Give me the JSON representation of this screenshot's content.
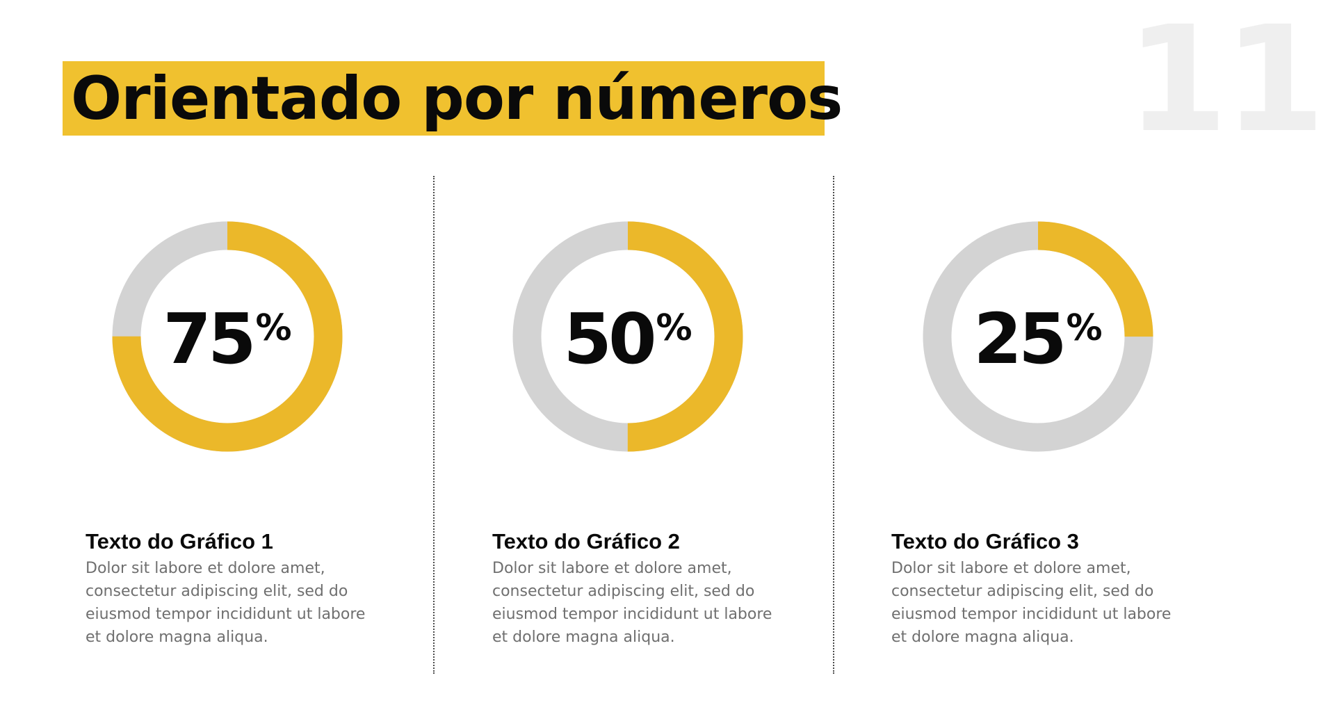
{
  "slide": {
    "number": "11",
    "title": "Orientado por números"
  },
  "colors": {
    "accent": "#f0c12f",
    "ring_fill": "#ebb82a",
    "ring_track": "#d3d3d3",
    "text": "#0a0a0a",
    "body_text": "#6f6f6f"
  },
  "charts": [
    {
      "value": "75",
      "percent_sign": "%",
      "heading": "Texto do Gráfico 1",
      "body": "Dolor sit labore et dolore amet, consectetur adipiscing elit, sed do eiusmod tempor incididunt ut labore et dolore magna aliqua."
    },
    {
      "value": "50",
      "percent_sign": "%",
      "heading": "Texto do Gráfico 2",
      "body": "Dolor sit labore et dolore amet, consectetur adipiscing elit, sed do eiusmod tempor incididunt ut labore et dolore magna aliqua."
    },
    {
      "value": "25",
      "percent_sign": "%",
      "heading": "Texto do Gráfico 3",
      "body": "Dolor sit labore et dolore amet, consectetur adipiscing elit, sed do eiusmod tempor incididunt ut labore et dolore magna aliqua."
    }
  ],
  "chart_data": [
    {
      "type": "pie",
      "style": "donut",
      "values": [
        75,
        25
      ]
    },
    {
      "type": "pie",
      "style": "donut",
      "values": [
        50,
        50
      ]
    },
    {
      "type": "pie",
      "style": "donut",
      "values": [
        25,
        75
      ]
    }
  ]
}
